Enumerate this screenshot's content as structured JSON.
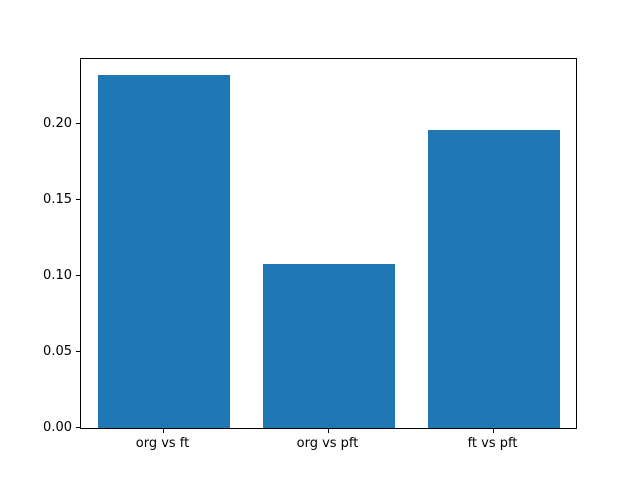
{
  "figure": {
    "background": "#ffffff",
    "axes_border_color": "#000000",
    "tick_color": "#000000"
  },
  "chart_data": {
    "type": "bar",
    "title": "",
    "xlabel": "",
    "ylabel": "",
    "categories": [
      "org vs ft",
      "org vs pft",
      "ft vs pft"
    ],
    "values": [
      0.232,
      0.108,
      0.196
    ],
    "bar_color": "#1f77b4",
    "bar_width_fraction": 0.8,
    "ylim": [
      0,
      0.2428
    ],
    "yticks": [
      0.0,
      0.05,
      0.1,
      0.15,
      0.2
    ],
    "ytick_decimals": 2,
    "grid": false,
    "legend_position": "none"
  }
}
